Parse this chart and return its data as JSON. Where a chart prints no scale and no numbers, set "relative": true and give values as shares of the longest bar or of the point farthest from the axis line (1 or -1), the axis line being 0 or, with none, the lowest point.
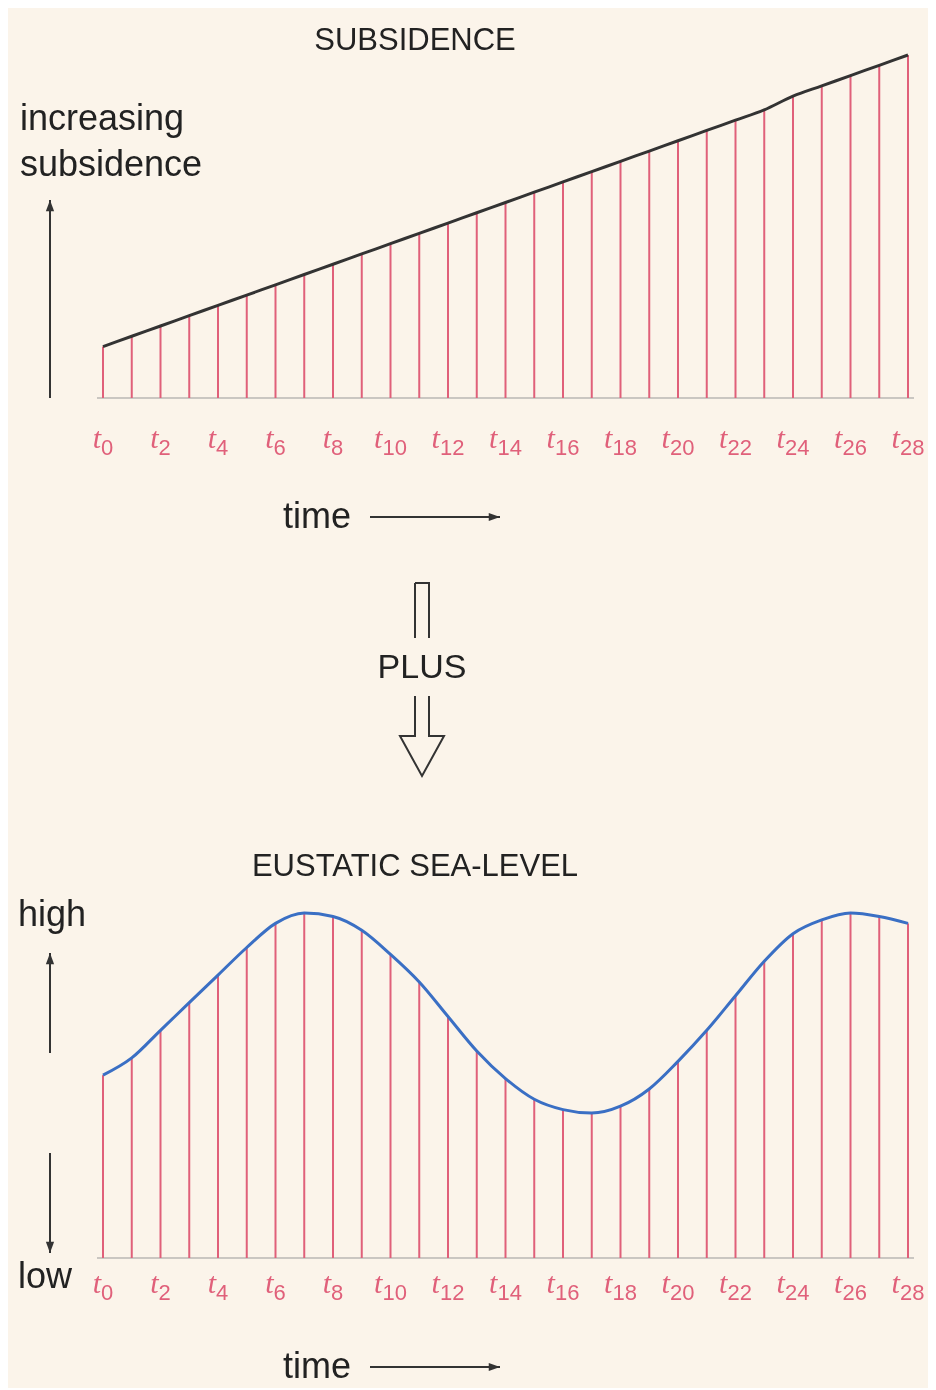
{
  "chart_data": [
    {
      "type": "bar",
      "title": "SUBSIDENCE",
      "ylabel": "increasing subsidence",
      "xlabel": "time",
      "relative": true,
      "annotations": [
        "PLUS"
      ],
      "categories": [
        "t$_{0}$",
        null,
        "t$_{2}$",
        null,
        "t$_{4}$",
        null,
        "t$_{6}$",
        null,
        "t$_{8}$",
        null,
        "t$_{10}$",
        null,
        "t$_{12}$",
        null,
        "t$_{14}$",
        null,
        "t$_{16}$",
        null,
        "t$_{18}$",
        null,
        "t$_{20}$",
        null,
        "t$_{22}$",
        null,
        "t$_{24}$",
        null,
        "t$_{26}$",
        null,
        "t$_{28}$"
      ],
      "series": [
        {
          "color": "#e0607a",
          "values": [
            0.15,
            0.18,
            0.21,
            0.24,
            0.27,
            0.3,
            0.33,
            0.36,
            0.39,
            0.42,
            0.45,
            0.48,
            0.51,
            0.54,
            0.57,
            0.6,
            0.63,
            0.66,
            0.69,
            0.72,
            0.75,
            0.78,
            0.81,
            0.84,
            0.88,
            0.91,
            0.94,
            0.97,
            1.0
          ]
        },
        {
          "type": "line",
          "color": "#333333",
          "values": [
            0.15,
            0.18,
            0.21,
            0.24,
            0.27,
            0.3,
            0.33,
            0.36,
            0.39,
            0.42,
            0.45,
            0.48,
            0.51,
            0.54,
            0.57,
            0.6,
            0.63,
            0.66,
            0.69,
            0.72,
            0.75,
            0.78,
            0.81,
            0.84,
            0.88,
            0.91,
            0.94,
            0.97,
            1.0
          ]
        }
      ]
    },
    {
      "type": "bar",
      "title": "EUSTATIC SEA-LEVEL",
      "xlabel": "time",
      "relative": true,
      "annotations": [
        "high",
        "low"
      ],
      "categories": [
        "t$_{0}$",
        null,
        "t$_{2}$",
        null,
        "t$_{4}$",
        null,
        "t$_{6}$",
        null,
        "t$_{8}$",
        null,
        "t$_{10}$",
        null,
        "t$_{12}$",
        null,
        "t$_{14}$",
        null,
        "t$_{16}$",
        null,
        "t$_{18}$",
        null,
        "t$_{20}$",
        null,
        "t$_{22}$",
        null,
        "t$_{24}$",
        null,
        "t$_{26}$",
        null,
        "t$_{28}$"
      ],
      "series": [
        {
          "color": "#e0607a",
          "values": [
            0.53,
            0.58,
            0.66,
            0.74,
            0.82,
            0.9,
            0.97,
            1.0,
            0.99,
            0.95,
            0.88,
            0.8,
            0.7,
            0.6,
            0.52,
            0.46,
            0.43,
            0.42,
            0.44,
            0.49,
            0.57,
            0.66,
            0.76,
            0.86,
            0.94,
            0.98,
            1.0,
            0.99,
            0.97
          ]
        },
        {
          "type": "line",
          "color": "#3a6fc4",
          "values": [
            0.53,
            0.58,
            0.66,
            0.74,
            0.82,
            0.9,
            0.97,
            1.0,
            0.99,
            0.95,
            0.88,
            0.8,
            0.7,
            0.6,
            0.52,
            0.46,
            0.43,
            0.42,
            0.44,
            0.49,
            0.57,
            0.66,
            0.76,
            0.86,
            0.94,
            0.98,
            1.0,
            0.99,
            0.97
          ]
        }
      ]
    }
  ]
}
